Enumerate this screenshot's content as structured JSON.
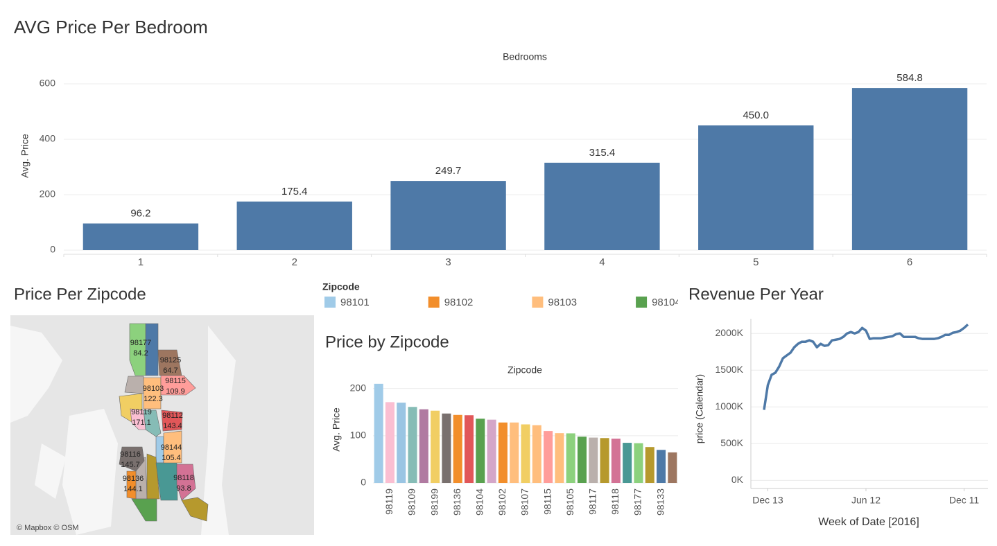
{
  "chart_data": [
    {
      "type": "bar",
      "title": "AVG Price Per Bedroom",
      "x_label": "Bedrooms",
      "y_label": "Avg. Price",
      "categories": [
        "1",
        "2",
        "3",
        "4",
        "5",
        "6"
      ],
      "values": [
        96.2,
        175.4,
        249.7,
        315.4,
        450.0,
        584.8
      ],
      "value_labels": [
        "96.2",
        "175.4",
        "249.7",
        "315.4",
        "450.0",
        "584.8"
      ],
      "color": "#4e79a7",
      "ylim": [
        0,
        660
      ],
      "yticks": [
        0,
        200,
        400,
        600
      ],
      "grid": true
    },
    {
      "type": "map",
      "title": "Price Per Zipcode",
      "attribution": "© Mapbox © OSM",
      "regions": [
        {
          "name": "98177",
          "value": 84.2,
          "color": "#8cd17d"
        },
        {
          "name": "98125",
          "value": 64.7,
          "color": "#9d7660"
        },
        {
          "name": "98103",
          "value": 122.3,
          "color": "#ffbe7d"
        },
        {
          "name": "98115",
          "value": 109.9,
          "color": "#ff9d9a"
        },
        {
          "name": "98119",
          "value": 171.1,
          "color": "#fabfd2"
        },
        {
          "name": "98112",
          "value": 143.4,
          "color": "#e15759"
        },
        {
          "name": "98144",
          "value": 105.4,
          "color": "#ffbe7d"
        },
        {
          "name": "98116",
          "value": 145.7,
          "color": "#79706e"
        },
        {
          "name": "98136",
          "value": 144.1,
          "color": "#f28e2b"
        },
        {
          "name": "98118",
          "value": 93.8,
          "color": "#d37295"
        }
      ]
    },
    {
      "type": "bar",
      "title": "Price by Zipcode",
      "x_label": "Zipcode",
      "y_label": "Avg. Price",
      "legend": {
        "title": "Zipcode",
        "entries": [
          {
            "name": "98101",
            "color": "#a0cbe8"
          },
          {
            "name": "98102",
            "color": "#f28e2b"
          },
          {
            "name": "98103",
            "color": "#ffbe7d"
          },
          {
            "name": "98104",
            "color": "#59a14f"
          }
        ]
      },
      "categories": [
        null,
        "98119",
        null,
        "98109",
        null,
        "98199",
        null,
        "98136",
        null,
        "98104",
        null,
        "98102",
        null,
        "98107",
        null,
        "98115",
        null,
        "98105",
        null,
        "98117",
        null,
        "98118",
        null,
        "98177",
        null,
        "98133",
        null
      ],
      "values": [
        210,
        171.1,
        170,
        161,
        156,
        153,
        147,
        144.1,
        143.4,
        136,
        134,
        128,
        128,
        124,
        122.3,
        109.9,
        105.4,
        105,
        98,
        96,
        95,
        93.8,
        85,
        84.2,
        76,
        70,
        64.7
      ],
      "colors": [
        "#a0cbe8",
        "#fabfd2",
        "#9ac5e3",
        "#86bcb6",
        "#b07aa1",
        "#f1ce63",
        "#79706e",
        "#f28e2b",
        "#e15759",
        "#59a14f",
        "#d4a6c8",
        "#f28e2b",
        "#ffbe7d",
        "#f1ce63",
        "#ffbe7d",
        "#ff9d9a",
        "#ffbe7d",
        "#8cd17d",
        "#59a14f",
        "#bab0ac",
        "#b6992d",
        "#d37295",
        "#499894",
        "#8cd17d",
        "#b6992d",
        "#4e79a7",
        "#9d7660"
      ],
      "ylim": [
        0,
        223
      ],
      "yticks": [
        0,
        100,
        200
      ],
      "grid": true
    },
    {
      "type": "line",
      "title": "Revenue Per Year",
      "x_label": "Week of Date [2016]",
      "y_label": "price (Calendar)",
      "categories": [
        null,
        "Dec 13",
        null,
        null,
        null,
        null,
        null,
        null,
        null,
        null,
        null,
        null,
        null,
        null,
        null,
        null,
        null,
        null,
        null,
        null,
        null,
        null,
        null,
        null,
        null,
        null,
        null,
        "Jun 12",
        null,
        null,
        null,
        null,
        null,
        null,
        null,
        null,
        null,
        null,
        null,
        null,
        null,
        null,
        null,
        null,
        null,
        null,
        null,
        null,
        null,
        null,
        null,
        null,
        null,
        "Dec 11",
        null
      ],
      "values": [
        960000,
        1296000,
        1437000,
        1465000,
        1549000,
        1662000,
        1700000,
        1737000,
        1812000,
        1859000,
        1887000,
        1887000,
        1906000,
        1887000,
        1812000,
        1859000,
        1831000,
        1840000,
        1906000,
        1915000,
        1925000,
        1953000,
        2000000,
        2019000,
        2000000,
        2019000,
        2075000,
        2038000,
        1925000,
        1934000,
        1934000,
        1934000,
        1944000,
        1953000,
        1962000,
        1991000,
        2000000,
        1953000,
        1953000,
        1953000,
        1953000,
        1934000,
        1925000,
        1925000,
        1925000,
        1925000,
        1934000,
        1953000,
        1981000,
        1981000,
        2009000,
        2019000,
        2038000,
        2075000,
        2122000
      ],
      "color": "#4e79a7",
      "ylim": [
        -110000,
        2200000
      ],
      "yticks": [
        {
          "value": 0,
          "label": "0K"
        },
        {
          "value": 500000,
          "label": "500K"
        },
        {
          "value": 1000000,
          "label": "1000K"
        },
        {
          "value": 1500000,
          "label": "1500K"
        },
        {
          "value": 2000000,
          "label": "2000K"
        }
      ],
      "grid": true
    }
  ]
}
